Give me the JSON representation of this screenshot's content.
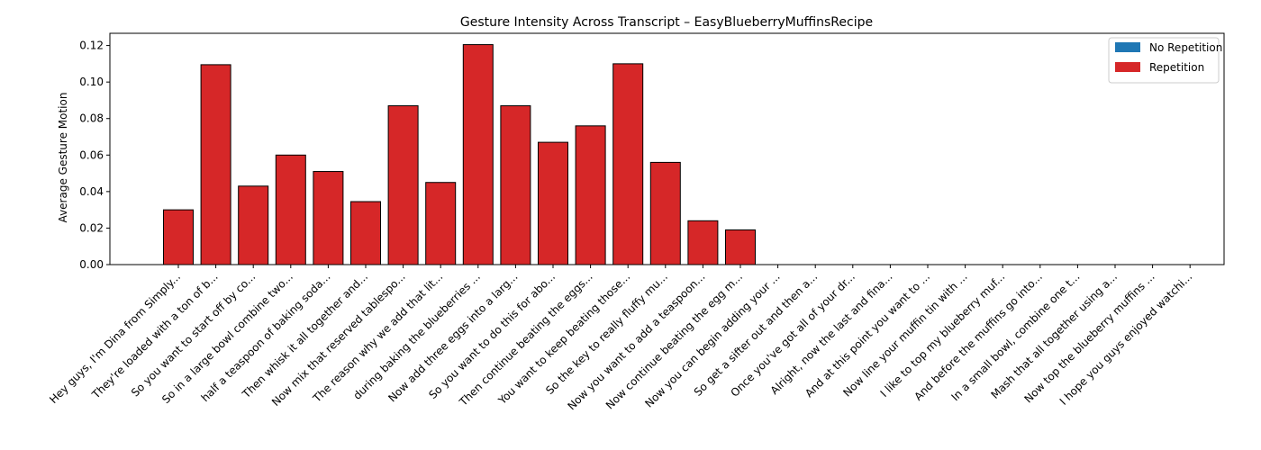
{
  "chart_data": {
    "type": "bar",
    "title": "Gesture Intensity Across Transcript – EasyBlueberryMuffinsRecipe",
    "xlabel": "",
    "ylabel": "Average Gesture Motion",
    "ylim": [
      0,
      0.1267
    ],
    "yticks": [
      "0.00",
      "0.02",
      "0.04",
      "0.06",
      "0.08",
      "0.10",
      "0.12"
    ],
    "ytick_values": [
      0,
      0.02,
      0.04,
      0.06,
      0.08,
      0.1,
      0.12
    ],
    "grid": false,
    "legend_position": "top-right",
    "legend": [
      {
        "label": "No Repetition",
        "color": "#1f77b4"
      },
      {
        "label": "Repetition",
        "color": "#d62728"
      }
    ],
    "categories": [
      "Hey guys, I'm Dina from Simply...",
      "They're loaded with a ton of b...",
      "So you want to start off by co...",
      "So in a large bowl combine two...",
      "half a teaspoon of baking soda...",
      "Then whisk it all together and...",
      "Now mix that reserved tablespo...",
      "The reason why we add that lit...",
      "during baking the blueberries ...",
      "Now add three eggs into a larg...",
      "So you want to do this for abo...",
      "Then continue beating the eggs...",
      "You want to keep beating those...",
      "So the key to really fluffy mu...",
      "Now you want to add a teaspoon...",
      "Now continue beating the egg m...",
      "Now you can begin adding your ...",
      "So get a sifter out and then a...",
      "Once you've got all of your dr...",
      "Alright, now the last and fina...",
      "And at this point you want to ...",
      "Now line your muffin tin with ...",
      "I like to top my blueberry muf...",
      "And before the muffins go into...",
      "In a small bowl, combine one t...",
      "Mash that all together using a...",
      "Now top the blueberry muffins ...",
      "I hope you guys enjoyed watchi..."
    ],
    "values": [
      0.03,
      0.1095,
      0.043,
      0.06,
      0.051,
      0.0345,
      0.087,
      0.045,
      0.1205,
      0.087,
      0.067,
      0.076,
      0.11,
      0.056,
      0.024,
      0.019,
      0,
      0,
      0,
      0,
      0,
      0,
      0,
      0,
      0,
      0,
      0,
      0
    ],
    "bar_series": [
      "Repetition",
      "Repetition",
      "Repetition",
      "Repetition",
      "Repetition",
      "Repetition",
      "Repetition",
      "Repetition",
      "Repetition",
      "Repetition",
      "Repetition",
      "Repetition",
      "Repetition",
      "Repetition",
      "Repetition",
      "Repetition",
      "Repetition",
      "Repetition",
      "Repetition",
      "Repetition",
      "Repetition",
      "Repetition",
      "Repetition",
      "Repetition",
      "Repetition",
      "Repetition",
      "Repetition",
      "Repetition"
    ]
  }
}
